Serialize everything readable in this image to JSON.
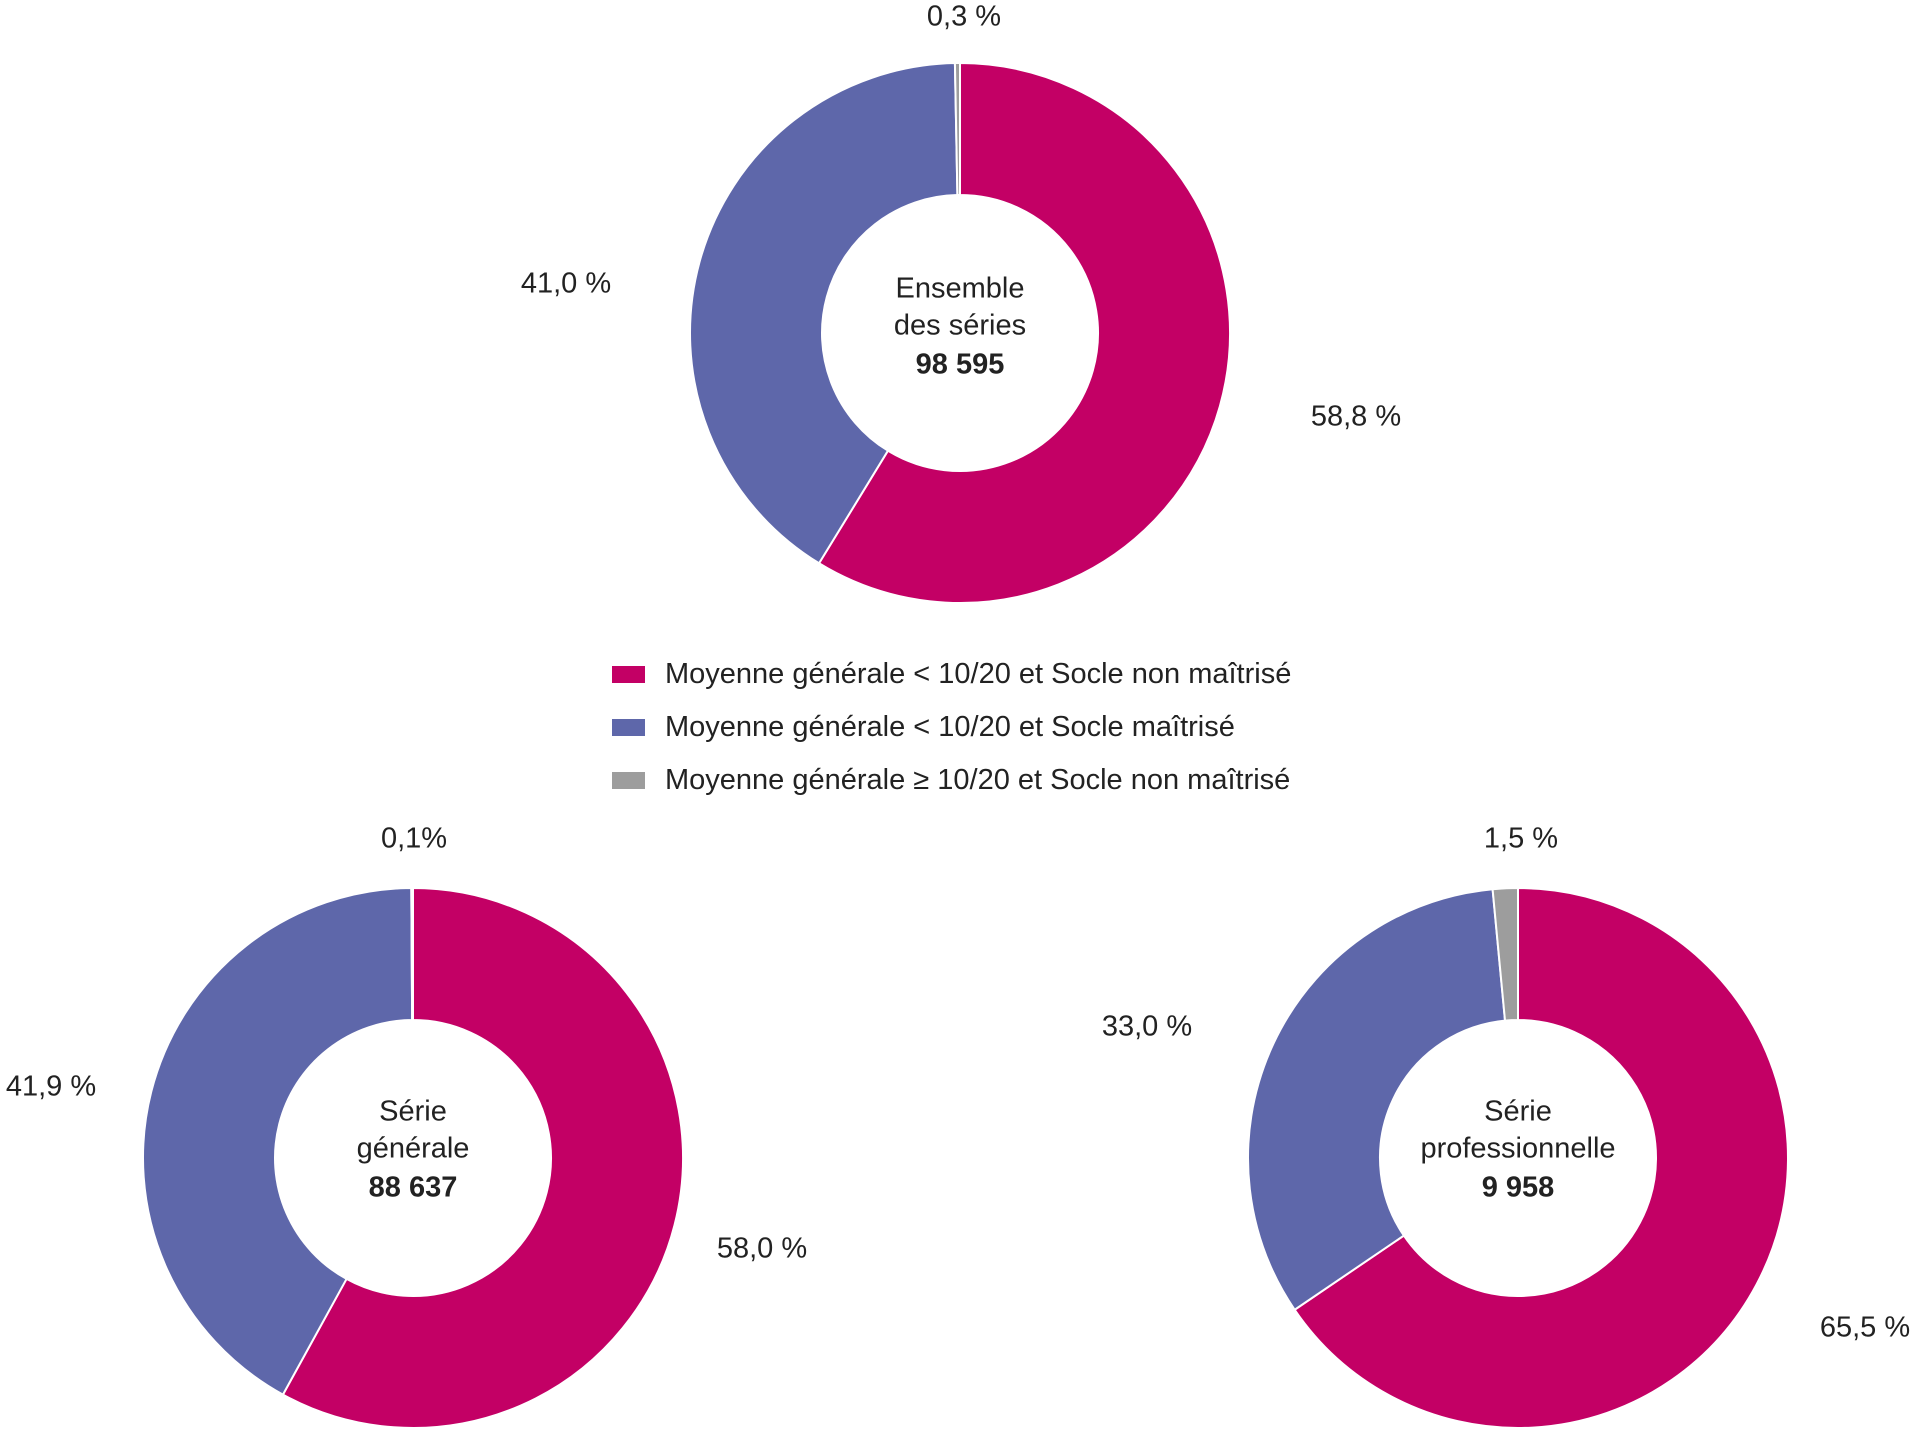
{
  "colors": {
    "magenta": "#C30065",
    "blue": "#5E67AA",
    "grey": "#9D9D9D",
    "separator": "#ffffff"
  },
  "legend": {
    "items": [
      {
        "label": "Moyenne générale < 10/20 et Socle non maîtrisé",
        "color": "#C30065"
      },
      {
        "label": "Moyenne générale < 10/20 et Socle maîtrisé",
        "color": "#5E67AA"
      },
      {
        "label": "Moyenne générale ≥ 10/20 et Socle non maîtrisé",
        "color": "#9D9D9D"
      }
    ]
  },
  "chart_data": [
    {
      "type": "pie",
      "center_lines": [
        "Ensemble",
        "des séries"
      ],
      "center_total": "98 595",
      "series": [
        {
          "value": 58.8,
          "label": "58,8 %",
          "color": "#C30065"
        },
        {
          "value": 41.0,
          "label": "41,0 %",
          "color": "#5E67AA"
        },
        {
          "value": 0.3,
          "label": "0,3 %",
          "color": "#9D9D9D"
        }
      ]
    },
    {
      "type": "pie",
      "center_lines": [
        "Série",
        "générale"
      ],
      "center_total": "88 637",
      "series": [
        {
          "value": 58.0,
          "label": "58,0 %",
          "color": "#C30065"
        },
        {
          "value": 41.9,
          "label": "41,9 %",
          "color": "#5E67AA"
        },
        {
          "value": 0.1,
          "label": "0,1%",
          "color": "#9D9D9D"
        }
      ]
    },
    {
      "type": "pie",
      "center_lines": [
        "Série",
        "professionnelle"
      ],
      "center_total": "9 958",
      "series": [
        {
          "value": 65.5,
          "label": "65,5 %",
          "color": "#C30065"
        },
        {
          "value": 33.0,
          "label": "33,0 %",
          "color": "#5E67AA"
        },
        {
          "value": 1.5,
          "label": "1,5 %",
          "color": "#9D9D9D"
        }
      ]
    }
  ]
}
